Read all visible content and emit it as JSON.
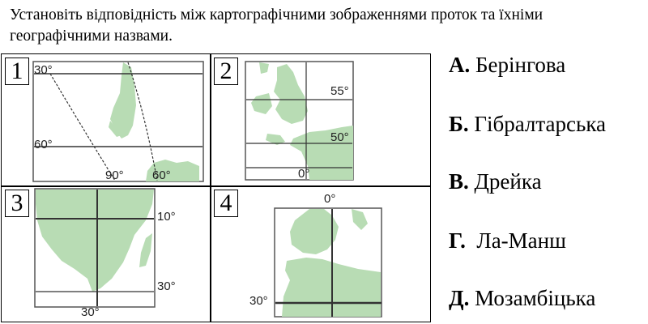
{
  "question": {
    "text": "Установіть відповідність між картографічними зображеннями проток та їхніми географічними назвами."
  },
  "maps": [
    {
      "number": "1",
      "labels": [
        "30°",
        "60°",
        "90°",
        "60°"
      ]
    },
    {
      "number": "2",
      "labels": [
        "55°",
        "50°",
        "0°"
      ]
    },
    {
      "number": "3",
      "labels": [
        "10°",
        "30°",
        "30°"
      ]
    },
    {
      "number": "4",
      "labels": [
        "0°",
        "30°"
      ]
    }
  ],
  "options": [
    {
      "letter": "А.",
      "name": "Берінгова"
    },
    {
      "letter": "Б.",
      "name": "Гібралтарська"
    },
    {
      "letter": "В.",
      "name": "Дрейка"
    },
    {
      "letter": "Г.",
      "name": " Ла-Манш"
    },
    {
      "letter": "Д.",
      "name": "Мозамбіцька"
    }
  ],
  "colors": {
    "land": "#b8dcb4",
    "frame": "#555555",
    "gridline": "#333333"
  }
}
